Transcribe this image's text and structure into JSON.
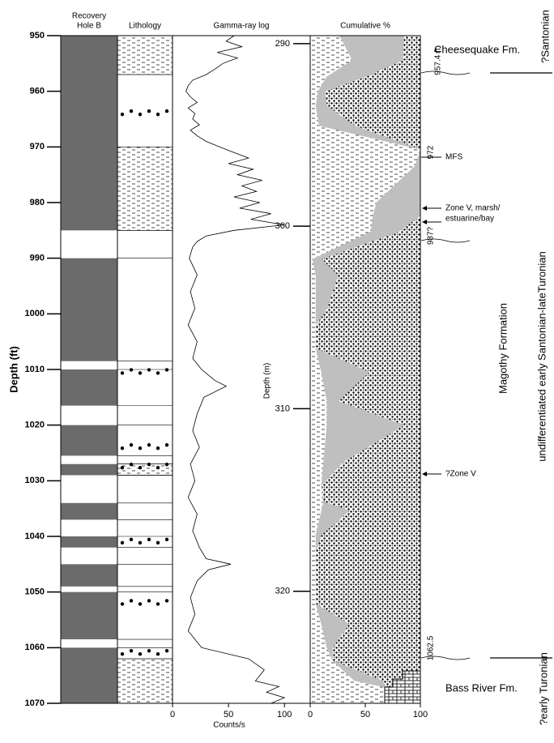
{
  "chart_data": [
    {
      "type": "recovery",
      "title_lines": [
        "Recovery",
        "Hole B"
      ],
      "ylabel": "Depth (ft)",
      "color": "#6b6b6b",
      "ylim": [
        950,
        1070
      ],
      "yticks": [
        950,
        960,
        970,
        980,
        990,
        1000,
        1010,
        1020,
        1030,
        1040,
        1050,
        1060,
        1070
      ],
      "intervals": [
        [
          950,
          985
        ],
        [
          990,
          1008.5
        ],
        [
          1010,
          1016.5
        ],
        [
          1020,
          1025.5
        ],
        [
          1027,
          1029
        ],
        [
          1034,
          1037
        ],
        [
          1040,
          1042
        ],
        [
          1045,
          1049
        ],
        [
          1050,
          1058.5
        ],
        [
          1060,
          1070
        ]
      ]
    },
    {
      "type": "lithology",
      "title": "Lithology",
      "ylim": [
        950,
        1070
      ],
      "units": [
        {
          "top": 950,
          "bottom": 957,
          "pattern": "silt"
        },
        {
          "top": 957,
          "bottom": 970,
          "pattern": "sand"
        },
        {
          "top": 970,
          "bottom": 985,
          "pattern": "silt"
        },
        {
          "top": 985,
          "bottom": 1027,
          "pattern": "sand"
        },
        {
          "top": 1027,
          "bottom": 1029,
          "pattern": "silt"
        },
        {
          "top": 1029,
          "bottom": 1062,
          "pattern": "sand"
        },
        {
          "top": 1062,
          "bottom": 1070,
          "pattern": "silt"
        }
      ],
      "pebble_rows": [
        964,
        1010.5,
        1024,
        1027.5,
        1041,
        1052,
        1061
      ]
    },
    {
      "type": "line",
      "title": "Gamma-ray log",
      "xlabel": "Counts/s",
      "color": "#000000",
      "ylim": [
        950,
        1070
      ],
      "xlim": [
        0,
        123
      ],
      "xticks": [
        0,
        50,
        100
      ],
      "depth": [
        950,
        951,
        952,
        953,
        954,
        955,
        956,
        957,
        958,
        959,
        960,
        961,
        962,
        963,
        964,
        965,
        966,
        967,
        968,
        969,
        970,
        971,
        972,
        973,
        974,
        975,
        976,
        977,
        978,
        979,
        980,
        981,
        982,
        983,
        984,
        985,
        986,
        987,
        988,
        990,
        993,
        996,
        999,
        1002,
        1005,
        1008,
        1010,
        1012,
        1013,
        1015,
        1018,
        1021,
        1024,
        1027,
        1030,
        1033,
        1036,
        1039,
        1042,
        1044,
        1045,
        1046,
        1048,
        1051,
        1054,
        1057,
        1060,
        1062,
        1064,
        1066,
        1067,
        1068,
        1069,
        1070
      ],
      "values": [
        55,
        48,
        62,
        40,
        58,
        45,
        38,
        30,
        18,
        14,
        12,
        16,
        22,
        14,
        20,
        18,
        24,
        16,
        22,
        30,
        42,
        55,
        68,
        50,
        72,
        58,
        80,
        62,
        75,
        55,
        78,
        60,
        88,
        70,
        100,
        55,
        30,
        22,
        18,
        15,
        22,
        16,
        20,
        14,
        22,
        18,
        26,
        38,
        48,
        28,
        22,
        18,
        24,
        16,
        20,
        14,
        22,
        18,
        24,
        30,
        52,
        32,
        22,
        16,
        20,
        14,
        26,
        68,
        82,
        74,
        95,
        84,
        100,
        88
      ]
    },
    {
      "type": "area",
      "title": "Cumulative %",
      "ylabel": "Depth (m)",
      "ylim": [
        289.56,
        326.14
      ],
      "yticks": [
        290,
        300,
        310,
        320
      ],
      "xlim": [
        0,
        100
      ],
      "xticks": [
        0,
        50,
        100
      ],
      "depth": [
        289.6,
        290.9,
        291.8,
        292.6,
        293.4,
        294.5,
        295.8,
        296.7,
        298.7,
        299.4,
        300.3,
        301.8,
        302.7,
        304.5,
        305.4,
        306.7,
        308.0,
        309.6,
        310.9,
        312.9,
        314.2,
        315.1,
        315.6,
        316.9,
        317.8,
        320.7,
        321.8,
        323.1,
        323.8,
        324.9,
        325.3,
        326.1
      ],
      "series": [
        {
          "color": "#bfbfbf",
          "values": [
            27,
            38,
            15,
            7,
            5,
            8,
            100,
            95,
            60,
            57,
            55,
            2,
            5,
            5,
            5,
            5,
            10,
            15,
            15,
            12,
            10,
            12,
            10,
            5,
            5,
            5,
            10,
            15,
            20,
            40,
            70,
            85
          ]
        },
        {
          "color": "#bfbfbf",
          "values": [
            85,
            84,
            50,
            13,
            15,
            40,
            100,
            100,
            100,
            100,
            80,
            10,
            25,
            15,
            5,
            5,
            53,
            25,
            85,
            30,
            10,
            12,
            35,
            10,
            5,
            5,
            35,
            20,
            20,
            65,
            70,
            85
          ]
        }
      ]
    }
  ],
  "annotations": {
    "cheesequake": "Cheesequake Fm.",
    "d957": "957.4 ft",
    "d972": "972",
    "mfs": "MFS",
    "zone_v_1": "Zone V, marsh/",
    "zone_v_2": "estuarine/bay",
    "d987": "987?",
    "zone_v_q": "?Zone V",
    "d1062": "1062.5",
    "bass_river": "Bass River Fm.",
    "santonian": "?Santonian",
    "magothy": "Magothy Formation",
    "undiff": "undifferentiated early Santonian-lateTuronian",
    "turonian": "?early Turonian"
  }
}
